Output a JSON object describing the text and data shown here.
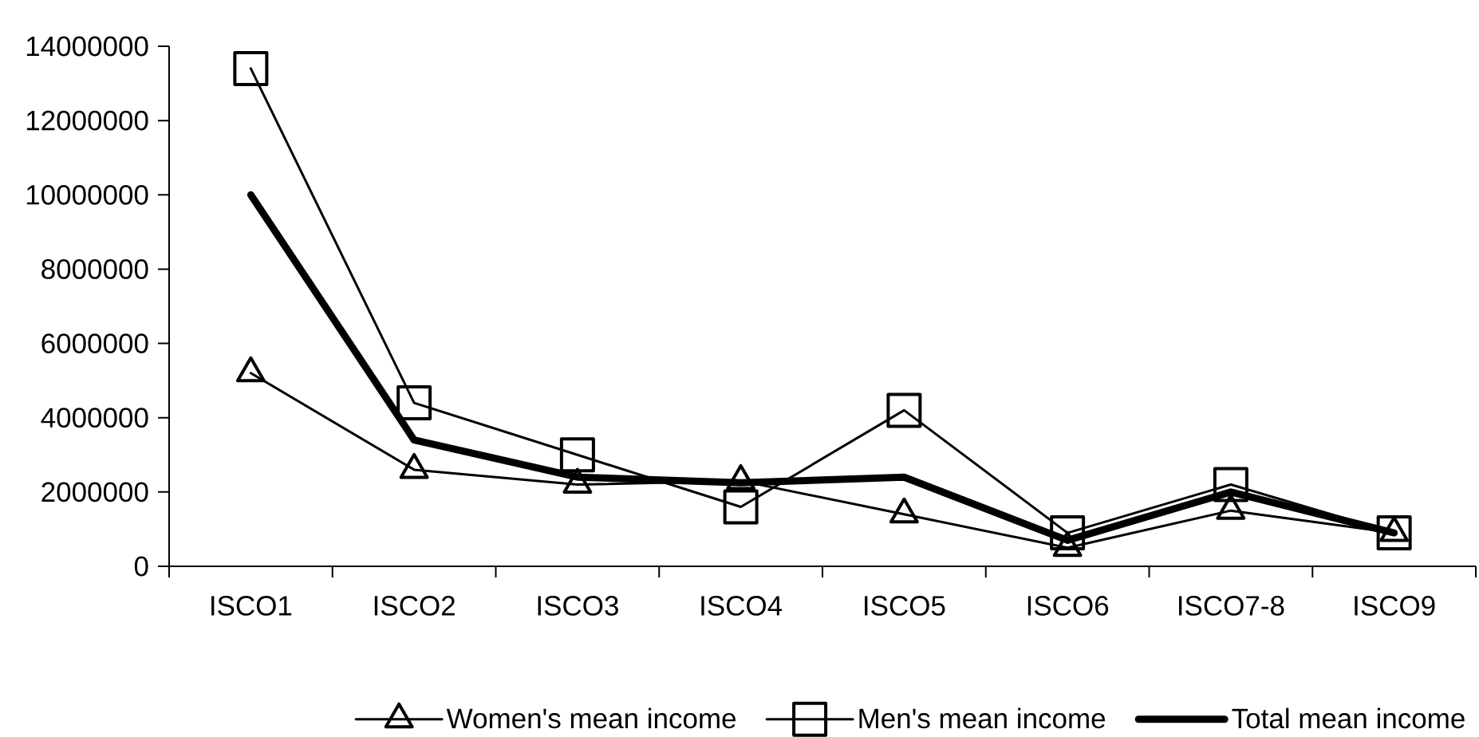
{
  "chart_data": {
    "type": "line",
    "categories": [
      "ISCO1",
      "ISCO2",
      "ISCO3",
      "ISCO4",
      "ISCO5",
      "ISCO6",
      "ISCO7-8",
      "ISCO9"
    ],
    "series": [
      {
        "name": "Women's mean income",
        "color": "#000000",
        "marker": "triangle",
        "values": [
          5200000,
          2600000,
          2200000,
          2300000,
          1400000,
          500000,
          1500000,
          900000
        ]
      },
      {
        "name": "Men's mean income",
        "color": "#000000",
        "marker": "square",
        "values": [
          13400000,
          4400000,
          3000000,
          1600000,
          4200000,
          900000,
          2200000,
          900000
        ]
      },
      {
        "name": "Total mean income",
        "color": "#000000",
        "marker": "none",
        "values": [
          10000000,
          3400000,
          2400000,
          2250000,
          2400000,
          700000,
          2000000,
          900000
        ]
      }
    ],
    "ylim": [
      0,
      14000000
    ],
    "yticks": [
      0,
      2000000,
      4000000,
      6000000,
      8000000,
      10000000,
      12000000,
      14000000
    ],
    "legend": "bottom",
    "line_style": "solid"
  }
}
